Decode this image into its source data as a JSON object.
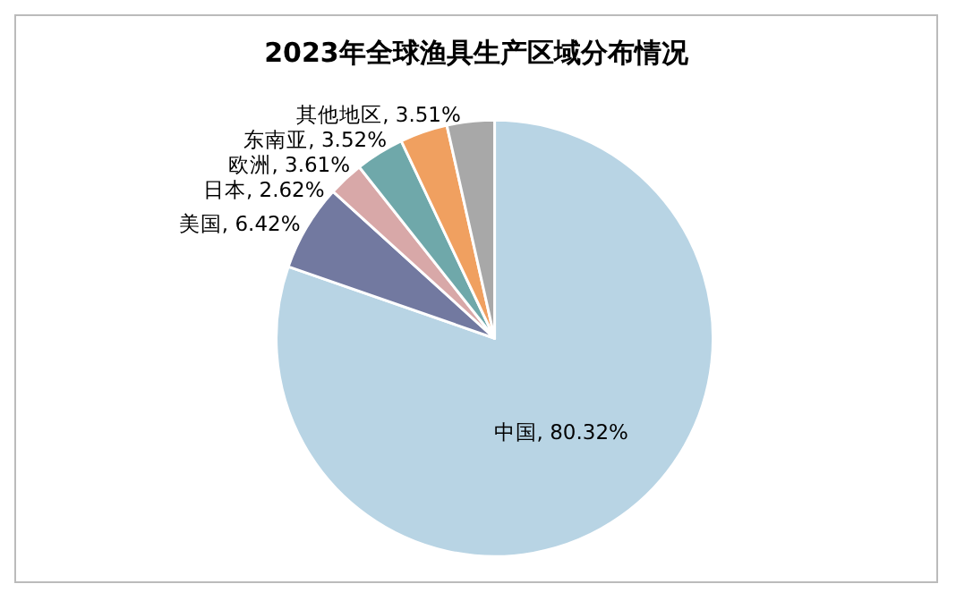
{
  "chart_data": {
    "type": "pie",
    "title": "2023年全球渔具生产区域分布情况",
    "categories": [
      "中国",
      "美国",
      "日本",
      "欧洲",
      "东南亚",
      "其他地区"
    ],
    "values": [
      80.32,
      6.42,
      2.62,
      3.61,
      3.52,
      3.51
    ],
    "value_labels": [
      "80.32%",
      "6.42%",
      "2.62%",
      "3.61%",
      "3.52%",
      "3.51%"
    ],
    "colors": [
      "#b8d4e4",
      "#7279a0",
      "#d8a8a8",
      "#6fa8aa",
      "#f0a060",
      "#a8a8a8"
    ],
    "legend": false
  }
}
